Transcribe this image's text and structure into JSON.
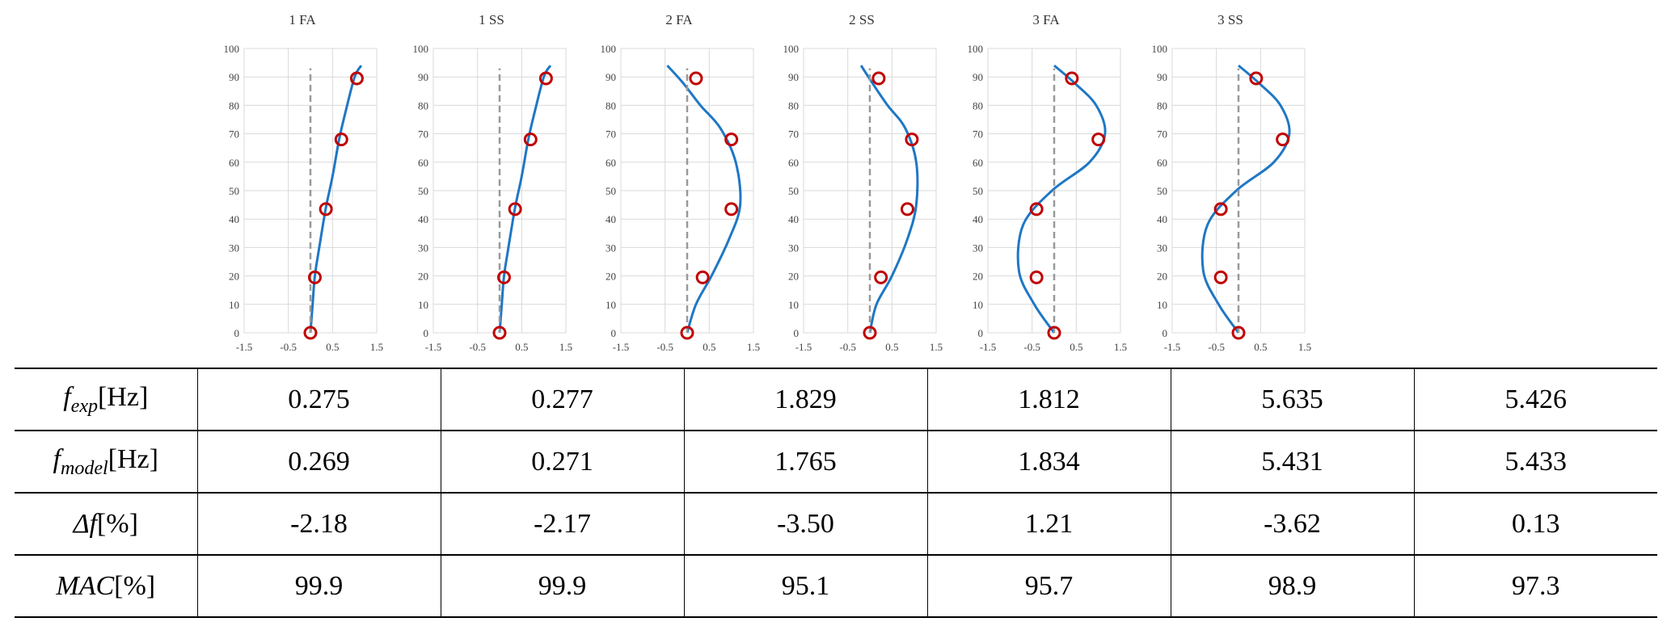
{
  "chart_data": [
    {
      "type": "line",
      "title": "1 FA",
      "xlim": [
        -1.5,
        1.5
      ],
      "ylim": [
        0,
        100
      ],
      "xticks": [
        "-1.5",
        "-0.5",
        "0.5",
        "1.5"
      ],
      "yticks": [
        "0",
        "10",
        "20",
        "30",
        "40",
        "50",
        "60",
        "70",
        "80",
        "90",
        "100"
      ],
      "grid": true,
      "series": [
        {
          "style": "smooth-curve",
          "color": "#1f77c4",
          "x": [
            0.0,
            0.05,
            0.1,
            0.2,
            0.35,
            0.5,
            0.65,
            0.8,
            1.0,
            1.15
          ],
          "y": [
            0,
            10,
            20,
            30,
            44,
            55,
            68,
            78,
            90,
            94
          ]
        },
        {
          "style": "dashed",
          "color": "#999999",
          "x": [
            0.0,
            0.0
          ],
          "y": [
            0,
            93
          ]
        },
        {
          "style": "circle-markers",
          "color": "#c00000",
          "x": [
            0.0,
            0.1,
            0.35,
            0.7,
            1.05
          ],
          "y": [
            0,
            19.5,
            43.5,
            68,
            89.5
          ]
        }
      ]
    },
    {
      "type": "line",
      "title": "1 SS",
      "xlim": [
        -1.5,
        1.5
      ],
      "ylim": [
        0,
        100
      ],
      "xticks": [
        "-1.5",
        "-0.5",
        "0.5",
        "1.5"
      ],
      "yticks": [
        "0",
        "10",
        "20",
        "30",
        "40",
        "50",
        "60",
        "70",
        "80",
        "90",
        "100"
      ],
      "grid": true,
      "series": [
        {
          "style": "smooth-curve",
          "color": "#1f77c4",
          "x": [
            0.0,
            0.05,
            0.1,
            0.2,
            0.35,
            0.5,
            0.65,
            0.8,
            1.0,
            1.15
          ],
          "y": [
            0,
            10,
            20,
            30,
            44,
            55,
            68,
            78,
            90,
            94
          ]
        },
        {
          "style": "dashed",
          "color": "#999999",
          "x": [
            0.0,
            0.0
          ],
          "y": [
            0,
            93
          ]
        },
        {
          "style": "circle-markers",
          "color": "#c00000",
          "x": [
            0.0,
            0.1,
            0.35,
            0.7,
            1.05
          ],
          "y": [
            0,
            19.5,
            43.5,
            68,
            89.5
          ]
        }
      ]
    },
    {
      "type": "line",
      "title": "2 FA",
      "xlim": [
        -1.5,
        1.5
      ],
      "ylim": [
        0,
        100
      ],
      "xticks": [
        "-1.5",
        "-0.5",
        "0.5",
        "1.5"
      ],
      "yticks": [
        "0",
        "10",
        "20",
        "30",
        "40",
        "50",
        "60",
        "70",
        "80",
        "90",
        "100"
      ],
      "grid": true,
      "series": [
        {
          "style": "smooth-curve",
          "color": "#1f77c4",
          "x": [
            0.0,
            0.2,
            0.55,
            0.95,
            1.2,
            1.1,
            0.75,
            0.3,
            -0.1,
            -0.45
          ],
          "y": [
            0,
            10,
            20,
            33,
            45,
            60,
            72,
            80,
            88,
            94
          ]
        },
        {
          "style": "dashed",
          "color": "#999999",
          "x": [
            0.0,
            0.0
          ],
          "y": [
            0,
            93
          ]
        },
        {
          "style": "circle-markers",
          "color": "#c00000",
          "x": [
            0.0,
            0.35,
            1.0,
            1.0,
            0.2
          ],
          "y": [
            0,
            19.5,
            43.5,
            68,
            89.5
          ]
        }
      ]
    },
    {
      "type": "line",
      "title": "2 SS",
      "xlim": [
        -1.5,
        1.5
      ],
      "ylim": [
        0,
        100
      ],
      "xticks": [
        "-1.5",
        "-0.5",
        "0.5",
        "1.5"
      ],
      "yticks": [
        "0",
        "10",
        "20",
        "30",
        "40",
        "50",
        "60",
        "70",
        "80",
        "90",
        "100"
      ],
      "grid": true,
      "series": [
        {
          "style": "smooth-curve",
          "color": "#1f77c4",
          "x": [
            0.0,
            0.15,
            0.5,
            0.85,
            1.05,
            1.05,
            0.8,
            0.4,
            0.05,
            -0.2
          ],
          "y": [
            0,
            10,
            20,
            33,
            45,
            60,
            72,
            80,
            88,
            94
          ]
        },
        {
          "style": "dashed",
          "color": "#999999",
          "x": [
            0.0,
            0.0
          ],
          "y": [
            0,
            93
          ]
        },
        {
          "style": "circle-markers",
          "color": "#c00000",
          "x": [
            0.0,
            0.25,
            0.85,
            0.95,
            0.2
          ],
          "y": [
            0,
            19.5,
            43.5,
            68,
            89.5
          ]
        }
      ]
    },
    {
      "type": "line",
      "title": "3 FA",
      "xlim": [
        -1.5,
        1.5
      ],
      "ylim": [
        0,
        100
      ],
      "xticks": [
        "-1.5",
        "-0.5",
        "0.5",
        "1.5"
      ],
      "yticks": [
        "0",
        "10",
        "20",
        "30",
        "40",
        "50",
        "60",
        "70",
        "80",
        "90",
        "100"
      ],
      "grid": true,
      "series": [
        {
          "style": "smooth-curve",
          "color": "#1f77c4",
          "x": [
            0.0,
            -0.45,
            -0.8,
            -0.7,
            -0.05,
            0.8,
            1.15,
            0.95,
            0.45,
            0.0
          ],
          "y": [
            0,
            10,
            22,
            38,
            50,
            60,
            70,
            80,
            88,
            94
          ]
        },
        {
          "style": "dashed",
          "color": "#999999",
          "x": [
            0.0,
            0.0
          ],
          "y": [
            0,
            93
          ]
        },
        {
          "style": "circle-markers",
          "color": "#c00000",
          "x": [
            0.0,
            -0.4,
            -0.4,
            1.0,
            0.4
          ],
          "y": [
            0,
            19.5,
            43.5,
            68,
            89.5
          ]
        }
      ]
    },
    {
      "type": "line",
      "title": "3 SS",
      "xlim": [
        -1.5,
        1.5
      ],
      "ylim": [
        0,
        100
      ],
      "xticks": [
        "-1.5",
        "-0.5",
        "0.5",
        "1.5"
      ],
      "yticks": [
        "0",
        "10",
        "20",
        "30",
        "40",
        "50",
        "60",
        "70",
        "80",
        "90",
        "100"
      ],
      "grid": true,
      "series": [
        {
          "style": "smooth-curve",
          "color": "#1f77c4",
          "x": [
            0.0,
            -0.45,
            -0.8,
            -0.7,
            -0.05,
            0.8,
            1.15,
            0.95,
            0.45,
            0.0
          ],
          "y": [
            0,
            10,
            22,
            38,
            50,
            60,
            70,
            80,
            88,
            94
          ]
        },
        {
          "style": "dashed",
          "color": "#999999",
          "x": [
            0.0,
            0.0
          ],
          "y": [
            0,
            93
          ]
        },
        {
          "style": "circle-markers",
          "color": "#c00000",
          "x": [
            0.0,
            -0.4,
            -0.4,
            1.0,
            0.4
          ],
          "y": [
            0,
            19.5,
            43.5,
            68,
            89.5
          ]
        }
      ]
    }
  ],
  "table": {
    "rows": [
      {
        "head_main": "f",
        "head_sub": "exp",
        "head_unit": "[Hz]",
        "values": [
          "0.275",
          "0.277",
          "1.829",
          "1.812",
          "5.635",
          "5.426"
        ]
      },
      {
        "head_main": "f",
        "head_sub": "model",
        "head_unit": "[Hz]",
        "values": [
          "0.269",
          "0.271",
          "1.765",
          "1.834",
          "5.431",
          "5.433"
        ]
      },
      {
        "head_main": "Δf",
        "head_sub": "",
        "head_unit": "[%]",
        "values": [
          "-2.18",
          "-2.17",
          "-3.50",
          "1.21",
          "-3.62",
          "0.13"
        ]
      },
      {
        "head_main": "MAC",
        "head_sub": "",
        "head_unit": "[%]",
        "values": [
          "99.9",
          "99.9",
          "95.1",
          "95.7",
          "98.9",
          "97.3"
        ]
      }
    ]
  }
}
